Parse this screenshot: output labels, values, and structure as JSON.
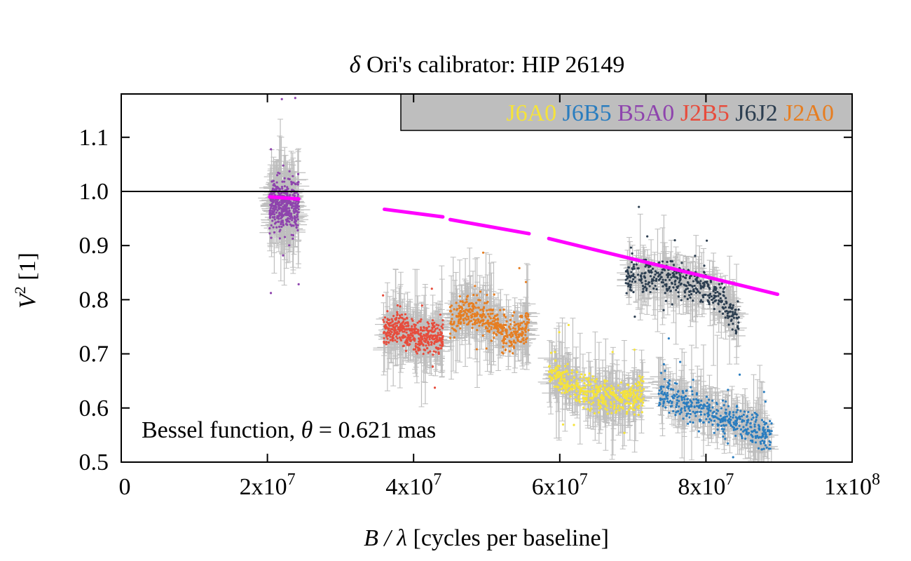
{
  "chart_data": {
    "type": "scatter",
    "title": "δ Ori's calibrator: HIP 26149",
    "title_parts": {
      "symbol": "δ",
      "rest": " Ori's calibrator: HIP 26149"
    },
    "xlabel": "B / λ [cycles per baseline]",
    "xlabel_parts": {
      "var": "B / λ",
      "rest": " [cycles per baseline]"
    },
    "ylabel": "V² [1]",
    "ylabel_parts": {
      "var": "V",
      "sup": "2",
      "rest": " [1]"
    },
    "xlim": [
      0,
      100000000
    ],
    "ylim": [
      0.5,
      1.18
    ],
    "x_ticks": [
      {
        "value": 0,
        "mant": "0",
        "exp": ""
      },
      {
        "value": 20000000,
        "mant": "2x10",
        "exp": "7"
      },
      {
        "value": 40000000,
        "mant": "4x10",
        "exp": "7"
      },
      {
        "value": 60000000,
        "mant": "6x10",
        "exp": "7"
      },
      {
        "value": 80000000,
        "mant": "8x10",
        "exp": "7"
      },
      {
        "value": 100000000,
        "mant": "1x10",
        "exp": "8"
      }
    ],
    "y_ticks": [
      {
        "value": 0.5,
        "label": "0.5"
      },
      {
        "value": 0.6,
        "label": "0.6"
      },
      {
        "value": 0.7,
        "label": "0.7"
      },
      {
        "value": 0.8,
        "label": "0.8"
      },
      {
        "value": 0.9,
        "label": "0.9"
      },
      {
        "value": 1.0,
        "label": "1.0"
      },
      {
        "value": 1.1,
        "label": "1.1"
      }
    ],
    "reference_line_y": 1.0,
    "legend_placement": "top-right",
    "legend_background": "#bebebe",
    "errorbar_color": "#bebebe",
    "series": [
      {
        "name": "J6A0",
        "color": "#f5e33a",
        "x_range": [
          58500000,
          71500000
        ],
        "shape": [
          [
            58500000,
            0.67
          ],
          [
            61000000,
            0.65
          ],
          [
            63000000,
            0.63
          ],
          [
            66000000,
            0.62
          ],
          [
            69000000,
            0.615
          ],
          [
            71500000,
            0.63
          ]
        ],
        "scatter": 0.03
      },
      {
        "name": "J6B5",
        "color": "#2a7dbf",
        "x_range": [
          73500000,
          89000000
        ],
        "shape": [
          [
            73500000,
            0.63
          ],
          [
            77000000,
            0.61
          ],
          [
            80000000,
            0.595
          ],
          [
            83000000,
            0.58
          ],
          [
            86000000,
            0.565
          ],
          [
            89000000,
            0.55
          ]
        ],
        "scatter": 0.03
      },
      {
        "name": "B5A0",
        "color": "#8e44ad",
        "x_range": [
          20300000,
          24300000
        ],
        "shape": [
          [
            20300000,
            0.97
          ],
          [
            21200000,
            0.985
          ],
          [
            22000000,
            0.975
          ],
          [
            23000000,
            0.97
          ],
          [
            24300000,
            0.975
          ]
        ],
        "scatter": 0.05
      },
      {
        "name": "J2B5",
        "color": "#e74c3c",
        "x_range": [
          35800000,
          44000000
        ],
        "shape": [
          [
            35800000,
            0.745
          ],
          [
            38000000,
            0.75
          ],
          [
            40000000,
            0.735
          ],
          [
            42000000,
            0.73
          ],
          [
            44000000,
            0.73
          ]
        ],
        "scatter": 0.03
      },
      {
        "name": "J6J2",
        "color": "#2c3e50",
        "x_range": [
          69000000,
          84500000
        ],
        "shape": [
          [
            69000000,
            0.84
          ],
          [
            72000000,
            0.845
          ],
          [
            75000000,
            0.84
          ],
          [
            78000000,
            0.83
          ],
          [
            81000000,
            0.815
          ],
          [
            83000000,
            0.79
          ],
          [
            84500000,
            0.76
          ]
        ],
        "scatter": 0.03
      },
      {
        "name": "J2A0",
        "color": "#e67e22",
        "x_range": [
          45000000,
          55800000
        ],
        "shape": [
          [
            45000000,
            0.76
          ],
          [
            47000000,
            0.78
          ],
          [
            49000000,
            0.775
          ],
          [
            51000000,
            0.755
          ],
          [
            53000000,
            0.735
          ],
          [
            55000000,
            0.74
          ],
          [
            55800000,
            0.76
          ]
        ],
        "scatter": 0.03
      }
    ],
    "model": {
      "name": "Bessel function, θ = 0.621 mas",
      "label_parts": {
        "pre": "Bessel function, ",
        "sym": "θ",
        "post": " = 0.621 mas"
      },
      "color": "#ff00ff",
      "segments": [
        [
          [
            20300000,
            0.99
          ],
          [
            24300000,
            0.986
          ]
        ],
        [
          [
            36000000,
            0.967
          ],
          [
            44000000,
            0.953
          ]
        ],
        [
          [
            45000000,
            0.948
          ],
          [
            55800000,
            0.922
          ]
        ],
        [
          [
            58500000,
            0.913
          ],
          [
            89800000,
            0.81
          ]
        ]
      ]
    }
  }
}
